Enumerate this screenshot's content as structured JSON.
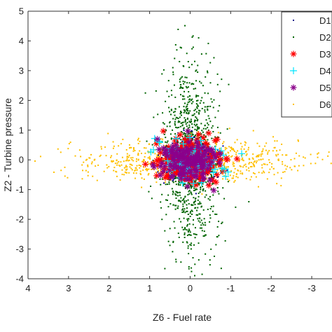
{
  "chart_data": {
    "type": "scatter",
    "title": "",
    "xlabel": "Z6 - Fuel rate",
    "ylabel": "Z2 - Turbine pressure",
    "xlim": [
      4,
      -3.5
    ],
    "ylim": [
      -4,
      5
    ],
    "x_ticks": [
      "4",
      "3",
      "2",
      "1",
      "0",
      "-1",
      "-2",
      "-3"
    ],
    "y_ticks": [
      "-4",
      "-3",
      "-2",
      "-1",
      "0",
      "1",
      "2",
      "3",
      "4",
      "5"
    ],
    "grid": false,
    "legend_position": "top-right",
    "series": [
      {
        "name": "D1",
        "marker": "dot",
        "color": "#00008b",
        "distribution": "gaussian",
        "center": [
          0,
          0
        ],
        "spread": [
          0.3,
          0.35
        ],
        "approx_points": 500
      },
      {
        "name": "D2",
        "marker": "dot",
        "color": "#006400",
        "distribution": "gaussian",
        "center": [
          0,
          0
        ],
        "spread": [
          0.35,
          1.6
        ],
        "approx_points": 1000
      },
      {
        "name": "D3",
        "marker": "star",
        "color": "#ff0000",
        "distribution": "gaussian",
        "center": [
          0,
          0
        ],
        "spread": [
          0.35,
          0.35
        ],
        "approx_points": 250
      },
      {
        "name": "D4",
        "marker": "plus",
        "color": "#00e5ff",
        "distribution": "gaussian",
        "center": [
          0,
          0
        ],
        "spread": [
          0.4,
          0.35
        ],
        "approx_points": 100
      },
      {
        "name": "D5",
        "marker": "asterisk",
        "color": "#8b008b",
        "distribution": "gaussian",
        "center": [
          0,
          0
        ],
        "spread": [
          0.35,
          0.35
        ],
        "approx_points": 150
      },
      {
        "name": "D6",
        "marker": "dot",
        "color": "#ffc000",
        "distribution": "gaussian",
        "center": [
          0,
          0
        ],
        "spread": [
          1.45,
          0.35
        ],
        "approx_points": 800
      }
    ]
  }
}
